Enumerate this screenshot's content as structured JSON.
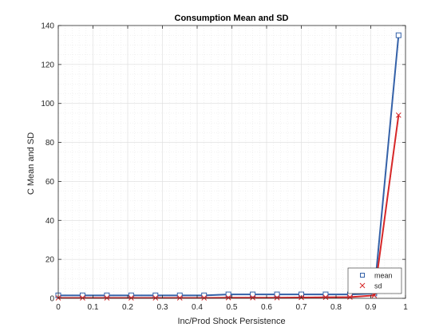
{
  "chart_data": {
    "type": "line",
    "title": "Consumption Mean and SD",
    "xlabel": "Inc/Prod Shock Persistence",
    "ylabel": "C Mean and SD",
    "xlim": [
      0,
      1
    ],
    "ylim": [
      0,
      140
    ],
    "xticks": [
      0,
      0.1,
      0.2,
      0.3,
      0.4,
      0.5,
      0.6,
      0.7,
      0.8,
      0.9,
      1
    ],
    "xtick_labels": [
      "0",
      "0.1",
      "0.2",
      "0.3",
      "0.4",
      "0.5",
      "0.6",
      "0.7",
      "0.8",
      "0.9",
      "1"
    ],
    "yticks": [
      0,
      20,
      40,
      60,
      80,
      100,
      120,
      140
    ],
    "ytick_labels": [
      "0",
      "20",
      "40",
      "60",
      "80",
      "100",
      "120",
      "140"
    ],
    "grid": true,
    "minor_grid": true,
    "legend_position": "bottom-right",
    "x": [
      0,
      0.07,
      0.14,
      0.21,
      0.28,
      0.35,
      0.42,
      0.49,
      0.56,
      0.63,
      0.7,
      0.77,
      0.84,
      0.91,
      0.98
    ],
    "series": [
      {
        "name": "mean",
        "color": "#3461a8",
        "marker": "square",
        "values": [
          1.5,
          1.5,
          1.5,
          1.5,
          1.5,
          1.5,
          1.5,
          2.0,
          2.0,
          2.0,
          2.0,
          2.0,
          2.0,
          2.5,
          135
        ]
      },
      {
        "name": "sd",
        "color": "#d62728",
        "marker": "x",
        "values": [
          0.2,
          0.2,
          0.2,
          0.2,
          0.2,
          0.2,
          0.2,
          0.3,
          0.3,
          0.3,
          0.4,
          0.5,
          0.6,
          1.5,
          94
        ]
      }
    ]
  }
}
